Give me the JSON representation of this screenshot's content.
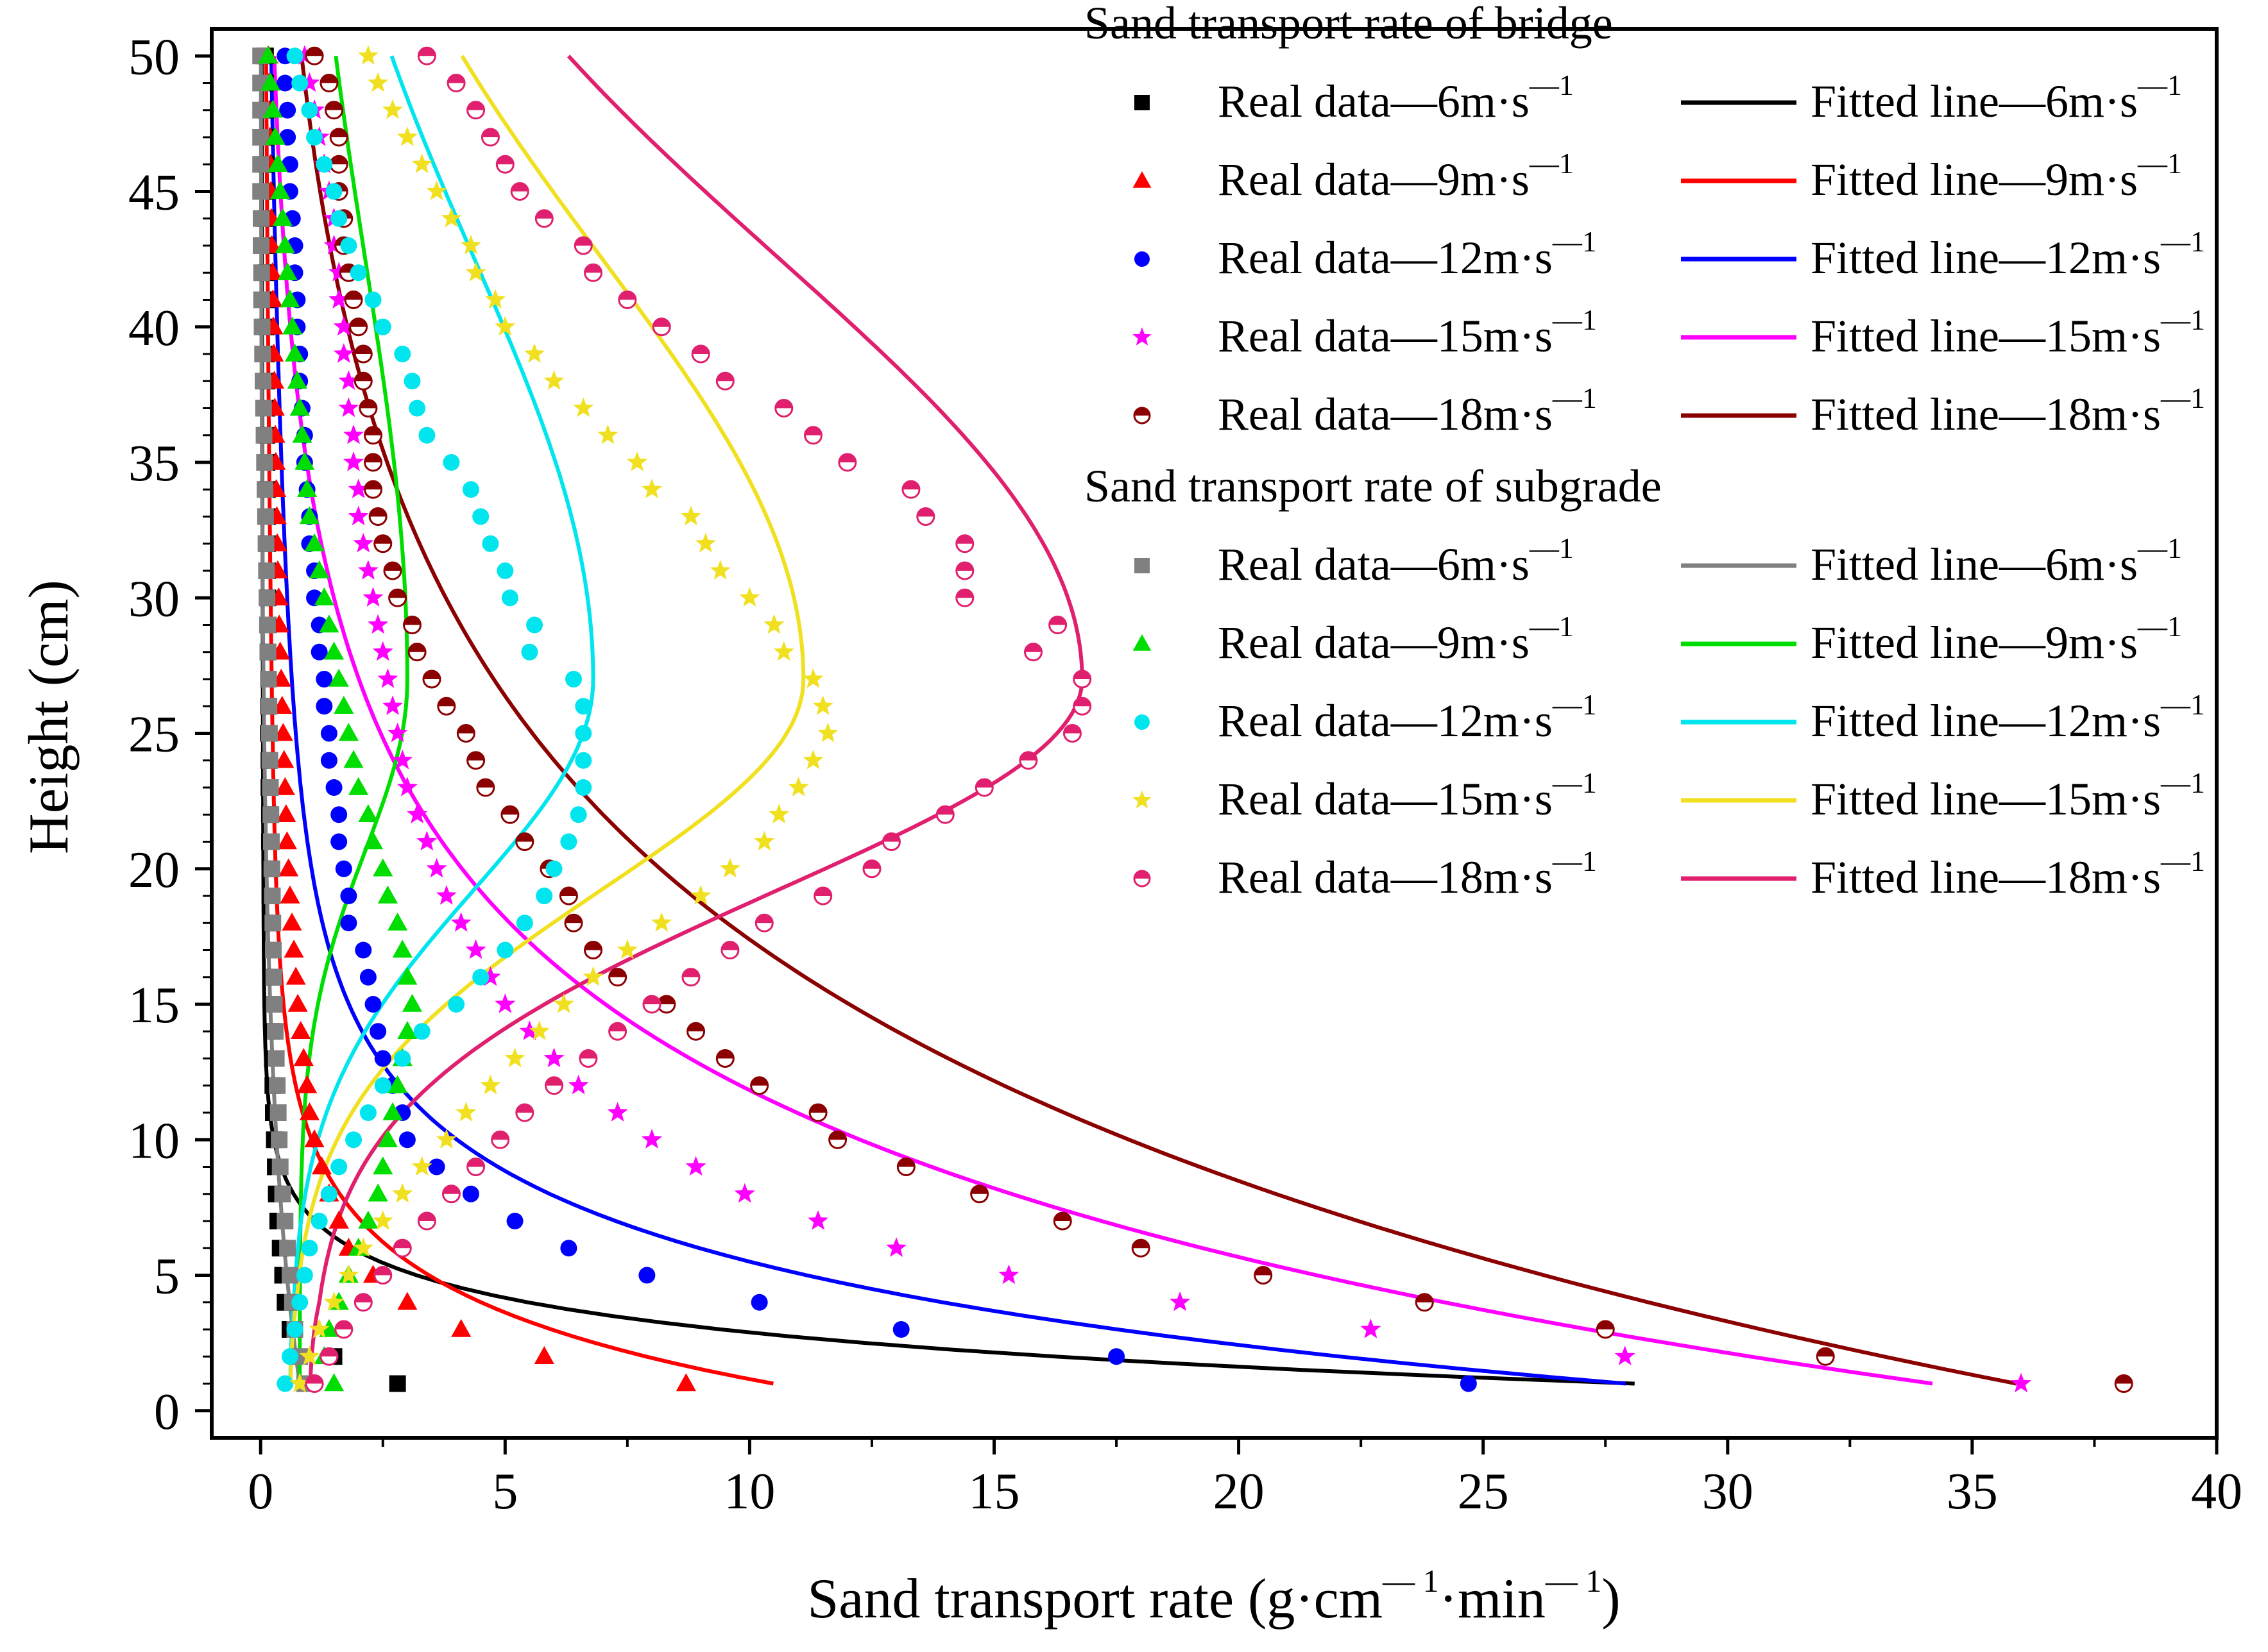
{
  "chart_data": {
    "type": "scatter",
    "title": "",
    "xlabel": "Sand transport rate (g·cm—¹·min—¹)",
    "xlabel_parts": {
      "main": "Sand transport rate (g·cm",
      "sup1": "— 1",
      "mid": "·min",
      "sup2": "— 1",
      "end": ")"
    },
    "ylabel": "Height (cm)",
    "xlim": [
      -1,
      40
    ],
    "ylim": [
      -1,
      51
    ],
    "xticks": [
      "0",
      "5",
      "10",
      "15",
      "20",
      "25",
      "30",
      "35",
      "40"
    ],
    "yticks": [
      "0",
      "5",
      "10",
      "15",
      "20",
      "25",
      "30",
      "35",
      "40",
      "45",
      "50"
    ],
    "legend_groups": [
      {
        "heading": "Sand transport rate of bridge",
        "prefix": "bridge"
      },
      {
        "heading": "Sand transport rate of subgrade",
        "prefix": "subgrade"
      }
    ],
    "legend_unit": "m·s",
    "legend_sup": "—1",
    "real_prefix": "Real data—",
    "fit_prefix": "Fitted line—",
    "series": [
      {
        "group": "bridge",
        "speed": "6",
        "marker": "square",
        "color": "#000000",
        "heights": [
          1,
          2,
          3,
          4,
          5,
          6,
          7,
          8,
          9,
          10,
          11,
          12,
          13,
          14,
          15,
          16,
          17,
          18,
          19,
          20,
          21,
          22,
          23,
          24,
          25,
          26,
          27,
          28,
          29,
          30,
          31,
          32,
          33,
          34,
          35,
          36,
          37,
          38,
          39,
          40,
          41,
          42,
          43,
          44,
          45,
          46,
          47,
          48,
          49,
          50
        ],
        "values": [
          2.8,
          1.5,
          0.6,
          0.5,
          0.45,
          0.4,
          0.35,
          0.32,
          0.3,
          0.28,
          0.26,
          0.25,
          0.24,
          0.23,
          0.22,
          0.21,
          0.2,
          0.2,
          0.19,
          0.19,
          0.18,
          0.18,
          0.17,
          0.17,
          0.16,
          0.16,
          0.16,
          0.15,
          0.15,
          0.15,
          0.14,
          0.14,
          0.14,
          0.14,
          0.13,
          0.13,
          0.13,
          0.13,
          0.12,
          0.12,
          0.12,
          0.12,
          0.12,
          0.11,
          0.11,
          0.11,
          0.11,
          0.11,
          0.1,
          0.1
        ],
        "fit_a": 28,
        "fit_b": 0.55,
        "fit_c": 0.1,
        "fit_d": 0,
        "fit_k": 0.03
      },
      {
        "group": "bridge",
        "speed": "9",
        "marker": "triangle",
        "color": "#ff0000",
        "heights": [
          1,
          2,
          3,
          4,
          5,
          6,
          7,
          8,
          9,
          10,
          11,
          12,
          13,
          14,
          15,
          16,
          17,
          18,
          19,
          20,
          21,
          22,
          23,
          24,
          25,
          26,
          27,
          28,
          29,
          30,
          31,
          32,
          33,
          34,
          35,
          36,
          37,
          38,
          39,
          40,
          41,
          42,
          43,
          44,
          45,
          46,
          47,
          48,
          49,
          50
        ],
        "values": [
          8.7,
          5.8,
          4.1,
          3.0,
          2.3,
          1.8,
          1.6,
          1.4,
          1.25,
          1.1,
          1.0,
          0.95,
          0.88,
          0.82,
          0.76,
          0.72,
          0.68,
          0.64,
          0.6,
          0.57,
          0.54,
          0.52,
          0.5,
          0.48,
          0.46,
          0.44,
          0.42,
          0.4,
          0.38,
          0.37,
          0.35,
          0.34,
          0.33,
          0.32,
          0.31,
          0.3,
          0.29,
          0.28,
          0.27,
          0.26,
          0.25,
          0.24,
          0.23,
          0.22,
          0.21,
          0.2,
          0.19,
          0.18,
          0.17,
          0.16
        ],
        "fit_a": 10,
        "fit_b": 0.3,
        "fit_c": 0.5,
        "fit_d": 0,
        "fit_k": 0.03
      },
      {
        "group": "bridge",
        "speed": "12",
        "marker": "circle",
        "color": "#0000ff",
        "heights": [
          1,
          2,
          3,
          4,
          5,
          6,
          7,
          8,
          9,
          10,
          11,
          12,
          13,
          14,
          15,
          16,
          17,
          18,
          19,
          20,
          21,
          22,
          23,
          24,
          25,
          26,
          27,
          28,
          29,
          30,
          31,
          32,
          33,
          34,
          35,
          36,
          37,
          38,
          39,
          40,
          41,
          42,
          43,
          44,
          45,
          46,
          47,
          48,
          49,
          50
        ],
        "values": [
          24.7,
          17.5,
          13.1,
          10.2,
          7.9,
          6.3,
          5.2,
          4.3,
          3.6,
          3.0,
          2.9,
          2.7,
          2.5,
          2.4,
          2.3,
          2.2,
          2.1,
          1.8,
          1.8,
          1.7,
          1.6,
          1.6,
          1.5,
          1.4,
          1.4,
          1.3,
          1.3,
          1.2,
          1.2,
          1.1,
          1.1,
          1.0,
          1.0,
          0.95,
          0.9,
          0.9,
          0.85,
          0.8,
          0.8,
          0.75,
          0.75,
          0.7,
          0.7,
          0.65,
          0.6,
          0.6,
          0.55,
          0.55,
          0.5,
          0.5
        ],
        "fit_a": 26,
        "fit_b": 0.25,
        "fit_c": 1.0,
        "fit_d": 1.0,
        "fit_k": 0.04
      },
      {
        "group": "bridge",
        "speed": "15",
        "marker": "star",
        "color": "#ff00ff",
        "heights": [
          1,
          2,
          3,
          4,
          5,
          6,
          7,
          8,
          9,
          10,
          11,
          12,
          13,
          14,
          15,
          16,
          17,
          18,
          19,
          20,
          21,
          22,
          23,
          24,
          25,
          26,
          27,
          28,
          29,
          30,
          31,
          32,
          33,
          34,
          35,
          36,
          37,
          38,
          39,
          40,
          41,
          42,
          43,
          44,
          45,
          46,
          47,
          48,
          49,
          50
        ],
        "values": [
          36.0,
          27.9,
          22.7,
          18.8,
          15.3,
          13.0,
          11.4,
          9.9,
          8.9,
          8.0,
          7.3,
          6.5,
          6.0,
          5.5,
          5.0,
          4.7,
          4.4,
          4.1,
          3.8,
          3.6,
          3.4,
          3.2,
          3.0,
          2.9,
          2.8,
          2.7,
          2.6,
          2.5,
          2.4,
          2.3,
          2.2,
          2.1,
          2.0,
          2.0,
          1.9,
          1.9,
          1.8,
          1.8,
          1.7,
          1.7,
          1.6,
          1.6,
          1.5,
          1.5,
          1.4,
          1.3,
          1.2,
          1.1,
          1.0,
          0.9
        ],
        "fit_a": 32,
        "fit_b": 0.12,
        "fit_c": 2.0,
        "fit_d": 0.3,
        "fit_k": 0.05
      },
      {
        "group": "bridge",
        "speed": "18",
        "marker": "halfcircle",
        "color": "#8b0000",
        "heights": [
          1,
          2,
          3,
          4,
          5,
          6,
          7,
          8,
          9,
          10,
          11,
          12,
          13,
          14,
          15,
          16,
          17,
          18,
          19,
          20,
          21,
          22,
          23,
          24,
          25,
          26,
          27,
          28,
          29,
          30,
          31,
          32,
          33,
          34,
          35,
          36,
          37,
          38,
          39,
          40,
          41,
          42,
          43,
          44,
          45,
          46,
          47,
          48,
          49,
          50
        ],
        "values": [
          38.1,
          32.0,
          27.5,
          23.8,
          20.5,
          18.0,
          16.4,
          14.7,
          13.2,
          11.8,
          11.4,
          10.2,
          9.5,
          8.9,
          8.3,
          7.3,
          6.8,
          6.4,
          6.3,
          5.9,
          5.4,
          5.1,
          4.6,
          4.4,
          4.2,
          3.8,
          3.5,
          3.2,
          3.1,
          2.8,
          2.7,
          2.5,
          2.4,
          2.3,
          2.3,
          2.3,
          2.2,
          2.1,
          2.1,
          2.0,
          1.9,
          1.8,
          1.7,
          1.7,
          1.6,
          1.6,
          1.6,
          1.5,
          1.4,
          1.1
        ],
        "fit_a": 34,
        "fit_b": 0.08,
        "fit_c": 2.0,
        "fit_d": 0,
        "fit_k": 0.05
      },
      {
        "group": "subgrade",
        "speed": "6",
        "marker": "square",
        "color": "#808080",
        "heights": [
          1,
          2,
          3,
          4,
          5,
          6,
          7,
          8,
          9,
          10,
          11,
          12,
          13,
          14,
          15,
          16,
          17,
          18,
          19,
          20,
          21,
          22,
          23,
          24,
          25,
          26,
          27,
          28,
          29,
          30,
          31,
          32,
          33,
          34,
          35,
          36,
          37,
          38,
          39,
          40,
          41,
          42,
          43,
          44,
          45,
          46,
          47,
          48,
          49,
          50
        ],
        "values": [
          0.9,
          0.8,
          0.7,
          0.65,
          0.6,
          0.55,
          0.5,
          0.45,
          0.4,
          0.38,
          0.36,
          0.34,
          0.32,
          0.3,
          0.28,
          0.27,
          0.26,
          0.25,
          0.24,
          0.23,
          0.22,
          0.21,
          0.2,
          0.19,
          0.18,
          0.17,
          0.16,
          0.15,
          0.14,
          0.13,
          0.12,
          0.11,
          0.1,
          0.09,
          0.08,
          0.07,
          0.06,
          0.05,
          0.04,
          0.03,
          0.02,
          0.02,
          0.01,
          0.01,
          0.0,
          0.0,
          0.0,
          0.0,
          0.0,
          0.0
        ],
        "fit_a": 0.8,
        "fit_b": 0.1,
        "fit_c": 0.0,
        "fit_d": 0,
        "fit_k": 0.02
      },
      {
        "group": "subgrade",
        "speed": "9",
        "marker": "triangle",
        "color": "#00dd00",
        "heights": [
          1,
          2,
          3,
          4,
          5,
          6,
          7,
          8,
          9,
          10,
          11,
          12,
          13,
          14,
          15,
          16,
          17,
          18,
          19,
          20,
          21,
          22,
          23,
          24,
          25,
          26,
          27,
          28,
          29,
          30,
          31,
          32,
          33,
          34,
          35,
          36,
          37,
          38,
          39,
          40,
          41,
          42,
          43,
          44,
          45,
          46,
          47,
          48,
          49,
          50
        ],
        "values": [
          1.5,
          1.3,
          1.4,
          1.6,
          1.8,
          2.0,
          2.2,
          2.4,
          2.5,
          2.6,
          2.7,
          2.8,
          2.9,
          3.0,
          3.1,
          3.0,
          2.9,
          2.8,
          2.6,
          2.5,
          2.3,
          2.2,
          2.0,
          1.9,
          1.8,
          1.7,
          1.6,
          1.5,
          1.4,
          1.3,
          1.2,
          1.1,
          1.0,
          0.95,
          0.9,
          0.85,
          0.8,
          0.75,
          0.7,
          0.65,
          0.6,
          0.55,
          0.5,
          0.45,
          0.4,
          0.35,
          0.3,
          0.25,
          0.2,
          0.15
        ],
        "fit_a": 0.8,
        "fit_b": 0.3,
        "fit_c": 0.0,
        "fit_d": 2.2,
        "fit_k": 0.12
      },
      {
        "group": "subgrade",
        "speed": "12",
        "marker": "circle",
        "color": "#00e5ee",
        "heights": [
          1,
          2,
          3,
          4,
          5,
          6,
          7,
          8,
          9,
          10,
          11,
          12,
          13,
          14,
          15,
          16,
          17,
          18,
          19,
          20,
          21,
          22,
          23,
          24,
          25,
          26,
          27,
          28,
          29,
          30,
          31,
          32,
          33,
          34,
          35,
          36,
          37,
          38,
          39,
          40,
          41,
          42,
          43,
          44,
          45,
          46,
          47,
          48,
          49,
          50
        ],
        "values": [
          0.5,
          0.6,
          0.7,
          0.8,
          0.9,
          1.0,
          1.2,
          1.4,
          1.6,
          1.9,
          2.2,
          2.5,
          2.9,
          3.3,
          4.0,
          4.5,
          5.0,
          5.4,
          5.8,
          6.0,
          6.3,
          6.5,
          6.6,
          6.6,
          6.6,
          6.6,
          6.4,
          5.5,
          5.6,
          5.1,
          5.0,
          4.7,
          4.5,
          4.3,
          3.9,
          3.4,
          3.2,
          3.1,
          2.9,
          2.5,
          2.3,
          2.0,
          1.8,
          1.6,
          1.5,
          1.3,
          1.1,
          1.0,
          0.8,
          0.7
        ],
        "fit_a": 0.6,
        "fit_b": 0.2,
        "fit_c": 0.0,
        "fit_d": 6.2,
        "fit_k": 0.1
      },
      {
        "group": "subgrade",
        "speed": "15",
        "marker": "star",
        "color": "#f0e020",
        "heights": [
          1,
          2,
          3,
          4,
          5,
          6,
          7,
          8,
          9,
          10,
          11,
          12,
          13,
          14,
          15,
          16,
          17,
          18,
          19,
          20,
          21,
          22,
          23,
          24,
          25,
          26,
          27,
          28,
          29,
          30,
          31,
          32,
          33,
          34,
          35,
          36,
          37,
          38,
          39,
          40,
          41,
          42,
          43,
          44,
          45,
          46,
          47,
          48,
          49,
          50
        ],
        "values": [
          0.8,
          1.0,
          1.2,
          1.5,
          1.8,
          2.1,
          2.5,
          2.9,
          3.3,
          3.8,
          4.2,
          4.7,
          5.2,
          5.7,
          6.2,
          6.8,
          7.5,
          8.2,
          9.0,
          9.6,
          10.3,
          10.6,
          11.0,
          11.3,
          11.6,
          11.5,
          11.3,
          10.7,
          10.5,
          10.0,
          9.4,
          9.1,
          8.8,
          8.0,
          7.7,
          7.1,
          6.6,
          6.0,
          5.6,
          5.0,
          4.8,
          4.4,
          4.3,
          3.9,
          3.6,
          3.3,
          3.0,
          2.7,
          2.4,
          2.2
        ],
        "fit_a": 0.6,
        "fit_b": 0.2,
        "fit_c": 0.0,
        "fit_d": 10.5,
        "fit_k": 0.11
      },
      {
        "group": "subgrade",
        "speed": "18",
        "marker": "halfcircle",
        "color": "#e0206e",
        "heights": [
          1,
          2,
          3,
          4,
          5,
          6,
          7,
          8,
          9,
          10,
          11,
          12,
          13,
          14,
          15,
          16,
          17,
          18,
          19,
          20,
          21,
          22,
          23,
          24,
          25,
          26,
          27,
          28,
          29,
          30,
          31,
          32,
          33,
          34,
          35,
          36,
          37,
          38,
          39,
          40,
          41,
          42,
          43,
          44,
          45,
          46,
          47,
          48,
          49,
          50
        ],
        "values": [
          1.1,
          1.4,
          1.7,
          2.1,
          2.5,
          2.9,
          3.4,
          3.9,
          4.4,
          4.9,
          5.4,
          6.0,
          6.7,
          7.3,
          8.0,
          8.8,
          9.6,
          10.3,
          11.5,
          12.5,
          12.9,
          14.0,
          14.8,
          15.7,
          16.6,
          16.8,
          16.8,
          15.8,
          16.3,
          14.4,
          14.4,
          14.4,
          13.6,
          13.3,
          12.0,
          11.3,
          10.7,
          9.5,
          9.0,
          8.2,
          7.5,
          6.8,
          6.6,
          5.8,
          5.3,
          5.0,
          4.7,
          4.4,
          4.0,
          3.4
        ],
        "fit_a": 1.0,
        "fit_b": 0.2,
        "fit_c": 0.0,
        "fit_d": 15.8,
        "fit_k": 0.1
      }
    ]
  }
}
